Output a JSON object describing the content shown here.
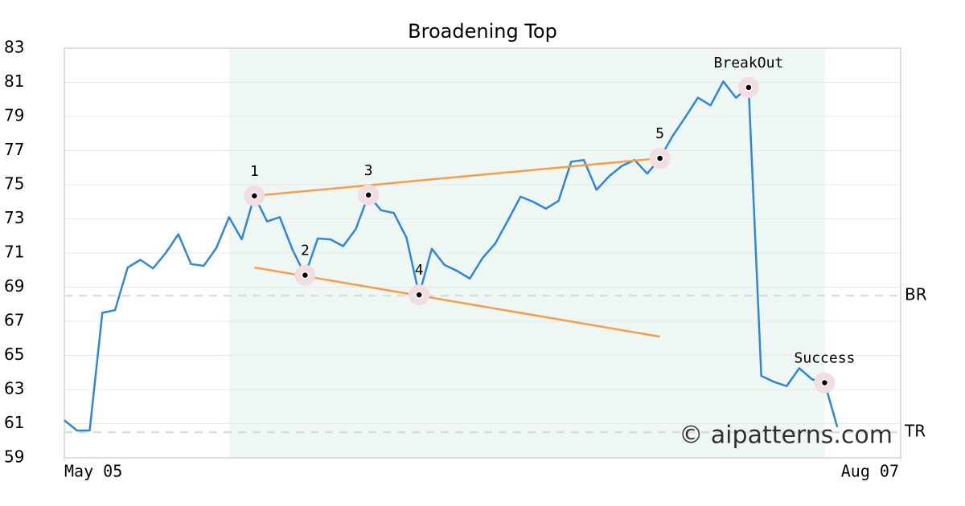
{
  "chart_data": {
    "type": "line",
    "title": "Broadening Top",
    "x": [
      0,
      1,
      2,
      3,
      4,
      5,
      6,
      7,
      8,
      9,
      10,
      11,
      12,
      13,
      14,
      15,
      16,
      17,
      18,
      19,
      20,
      21,
      22,
      23,
      24,
      25,
      26,
      27,
      28,
      29,
      30,
      31,
      32,
      33,
      34,
      35,
      36,
      37,
      38,
      39,
      40,
      41,
      42,
      43,
      44,
      45,
      46,
      47,
      48,
      49,
      50,
      51,
      52,
      53,
      54,
      55,
      56,
      57,
      58,
      59,
      60,
      61
    ],
    "series": [
      {
        "color": "#2e86de",
        "values": [
          61.2,
          60.6,
          60.6,
          67.5,
          67.65,
          70.15,
          70.6,
          70.1,
          71.0,
          72.1,
          70.35,
          70.25,
          71.3,
          73.1,
          71.8,
          74.35,
          72.85,
          73.1,
          71.2,
          69.7,
          71.85,
          71.8,
          71.4,
          72.4,
          74.4,
          73.5,
          73.35,
          71.9,
          68.55,
          71.25,
          70.3,
          69.95,
          69.5,
          70.7,
          71.55,
          72.9,
          74.3,
          74.0,
          73.6,
          74.05,
          76.35,
          76.45,
          74.7,
          75.5,
          76.1,
          76.45,
          75.65,
          76.55,
          77.85,
          78.95,
          80.1,
          79.65,
          81.05,
          80.1,
          80.7,
          63.8,
          63.45,
          63.2,
          64.25,
          63.6,
          63.4,
          60.8
        ]
      }
    ],
    "xlim": [
      0,
      66
    ],
    "xticks": [
      {
        "value": 0,
        "label": "May 05"
      },
      {
        "value": 66,
        "label": "Aug 07"
      }
    ],
    "ylim": [
      59,
      83
    ],
    "yticks": [
      59,
      61,
      63,
      65,
      67,
      69,
      71,
      73,
      75,
      77,
      79,
      81,
      83
    ],
    "grid": true,
    "highlight": {
      "x": [
        13,
        60
      ],
      "color": "#eef7f3"
    },
    "levels": [
      {
        "label": "BR",
        "value": 68.5
      },
      {
        "label": "TR",
        "value": 60.5
      }
    ],
    "trendlines": [
      {
        "color": "#f59d4a",
        "x": [
          15,
          47
        ],
        "values": [
          74.35,
          76.55
        ]
      },
      {
        "color": "#f59d4a",
        "x": [
          15,
          47
        ],
        "values": [
          70.15,
          66.1
        ]
      }
    ],
    "annotations": [
      {
        "label": "1",
        "x": 15
      },
      {
        "label": "2",
        "x": 19
      },
      {
        "label": "3",
        "x": 24
      },
      {
        "label": "4",
        "x": 28
      },
      {
        "label": "5",
        "x": 47
      },
      {
        "label": "BreakOut",
        "x": 54
      },
      {
        "label": "Success",
        "x": 60
      }
    ],
    "watermark": "© aipatterns.com"
  }
}
